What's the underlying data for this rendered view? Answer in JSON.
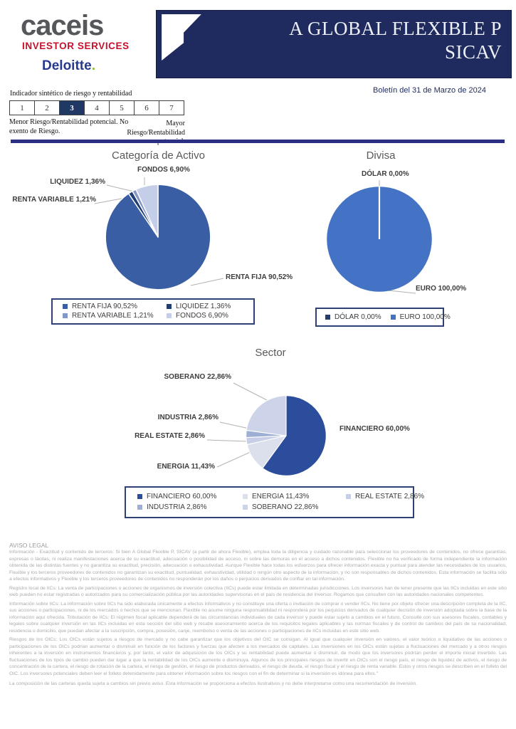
{
  "header": {
    "brand_caceis": "caceis",
    "brand_investor_services": "INVESTOR SERVICES",
    "brand_deloitte": "Deloitte",
    "brand_deloitte_dot": ".",
    "title_line1": "A GLOBAL FLEXIBLE P",
    "title_line2": "SICAV",
    "bulletin": "Boletín del 31 de Marzo de 2024",
    "title_bar_color": "#1F2A5E"
  },
  "risk_indicator": {
    "title": "Indicador sintético de riesgo y rentabilidad",
    "levels": [
      "1",
      "2",
      "3",
      "4",
      "5",
      "6",
      "7"
    ],
    "selected": "3",
    "selected_color": "#1F3864",
    "left_note": "Menor Riesgo/Rentabilidad potencial. No exento de Riesgo.",
    "right_note": "Mayor Riesgo/Rentabilidad potencial."
  },
  "chart_data": [
    {
      "type": "pie",
      "title": "Categoría de Activo",
      "legend_position": "bottom",
      "series": [
        {
          "label": "RENTA FIJA",
          "value": 90.52,
          "display": "RENTA FIJA 90,52%",
          "color": "#3A5EA4"
        },
        {
          "label": "LIQUIDEZ",
          "value": 1.36,
          "display": "LIQUIDEZ 1,36%",
          "color": "#1F3C73"
        },
        {
          "label": "RENTA VARIABLE",
          "value": 1.21,
          "display": "RENTA VARIABLE 1,21%",
          "color": "#8496C8"
        },
        {
          "label": "FONDOS",
          "value": 6.9,
          "display": "FONDOS 6,90%",
          "color": "#C5CEE8"
        }
      ]
    },
    {
      "type": "pie",
      "title": "Divisa",
      "legend_position": "bottom",
      "series": [
        {
          "label": "DÓLAR",
          "value": 0.0,
          "display": "DÓLAR 0,00%",
          "color": "#263E6E"
        },
        {
          "label": "EURO",
          "value": 100.0,
          "display": "EURO 100,00%",
          "color": "#4472C4"
        }
      ]
    },
    {
      "type": "pie",
      "title": "Sector",
      "legend_position": "bottom",
      "series": [
        {
          "label": "FINANCIERO",
          "value": 60.0,
          "display": "FINANCIERO 60,00%",
          "color": "#2B4D9B"
        },
        {
          "label": "ENERGIA",
          "value": 11.43,
          "display": "ENERGIA 11,43%",
          "color": "#DCE0ED"
        },
        {
          "label": "REAL ESTATE",
          "value": 2.86,
          "display": "REAL ESTATE 2,86%",
          "color": "#C6CFE6"
        },
        {
          "label": "INDUSTRIA",
          "value": 2.86,
          "display": "INDUSTRIA 2,86%",
          "color": "#9FAFD4"
        },
        {
          "label": "SOBERANO",
          "value": 22.86,
          "display": "SOBERANO 22,86%",
          "color": "#CDD4EA"
        }
      ]
    }
  ],
  "legal": {
    "heading": "AVISO LEGAL",
    "paragraphs": [
      "Información - Exactitud y contenido de terceros: Si bien A Global Flexible P, SICAV (a partir de ahora Flexible), emplea toda la diligencia y cuidado razonable para seleccionar los proveedores de contenidos, no ofrece garantías, expresas o tácitas, ni realiza manifestaciones acerca de su exactitud, adecuación o posibilidad de acceso, ni sobre las demoras en el acceso a dichos contenidos. Flexible no ha verificado de forma independiente la información obtenida de las distintas fuentes y no garantiza su exactitud, precisión, adecuación o exhaustividad. Aunque Flexible hace todas los esfuerzos para ofrecer información exacta y puntual para atender las necesidades de los usuarios, Flexible y los terceros proveedores de contenidos no garantizan su exactitud, puntualidad, exhaustividad, utilidad o ningún otro aspecto de la información, y no son responsables de dichos contenidos. Esta información se facilita sólo a efectos informativos y Flexible y los terceros proveedores de contenidos no responderán por los daños o perjuicios derivados de confiar en tal información.",
      "Registro local de IICs: La venta de participaciones o acciones de organismos de inversión colectiva (IICs) puede estar limitada en determinadas jurisdicciones. Los inversores han de tener presente que las IICs incluidas en este sitio web pueden no estar registradas o autorizados para su comercialización pública por las autoridades supervisoras en el país de residencia del inversor. Rogamos que consulten con las autoridades nacionales competentes.",
      "Información sobre IICs: La información sobre IICs ha sido elaborada únicamente a efectos informativos y no constituye una oferta o invitación de comprar o vender IICs. No tiene por objeto ofrecer una descripción completa de la IIC, sus acciones o participaciones, ni de los mercados o hechos que se mencionan. Flexible no asume ninguna responsabilidad ni responderá por los perjuicios derivados de cualquier decisión de inversión adoptada sobre la base de la información aquí ofrecida. Tributación de IICs: El régimen fiscal aplicable dependerá de las circunstancias individuales de cada inversor y puede estar sujeto a cambios en el futuro. Consulte con sus asesores fiscales, contables y legales sobre cualquier inversión en las IICs incluidas en esta sección del sitio web y recabe asesoramiento acerca de los requisitos legales aplicables y las normas fiscales y de control de cambios del país de su nacionalidad, residencia o domicilio, que puedan afectar a la suscripción, compra, posesión, canje, reembolso o venta de las acciones o participaciones de IICs incluidas en este sitio web.",
      "Riesgos de los OICs: Los OICs están sujetos a riesgos de mercado y no cabe garantizar que los objetivos del OIC se consigan. Al igual que cualquier inversión en valores, el valor teórico o liquidativo de las acciones o participaciones de los OICs podrían aumentar o disminuir en función de los factores y fuerzas que afecten a los mercados de capitales. Las inversiones en los OICs están sujetas a fluctuaciones del mercado y a otros riesgos inherentes a la inversión en instrumentos financieros y, por tanto, el valor de adquisición de los OICs y su rentabilidad puede aumentar o disminuir, de modo que los inversores podrían perder el importe inicial invertido. Las fluctuaciones de los tipos de cambio pueden dar lugar a que la rentabilidad de los OICs aumente o disminuya. Algunos de los principales riesgos de invertir en OICs son el riesgo país, el riesgo de liquidez de activos, el riesgo de concentración de la cartera, el riesgo de rotación de la cartera, el riesgo de gestión, el riesgo de productos derivados, el riesgo de deuda, el riesgo fiscal y el riesgo de renta variable. Estos y otros riesgos se describen en el folleto del OIC. Los inversores potenciales deben leer el folleto detenidamente para obtener información sobre los riesgos con el fin de determinar si la inversión es idónea para ellos.\"",
      "La composición de las carteras queda sujeta a cambios sin previo aviso. Esta información se proporciona a efectos ilustrativos y no debe interpretarse como una recomendación de inversión."
    ]
  }
}
